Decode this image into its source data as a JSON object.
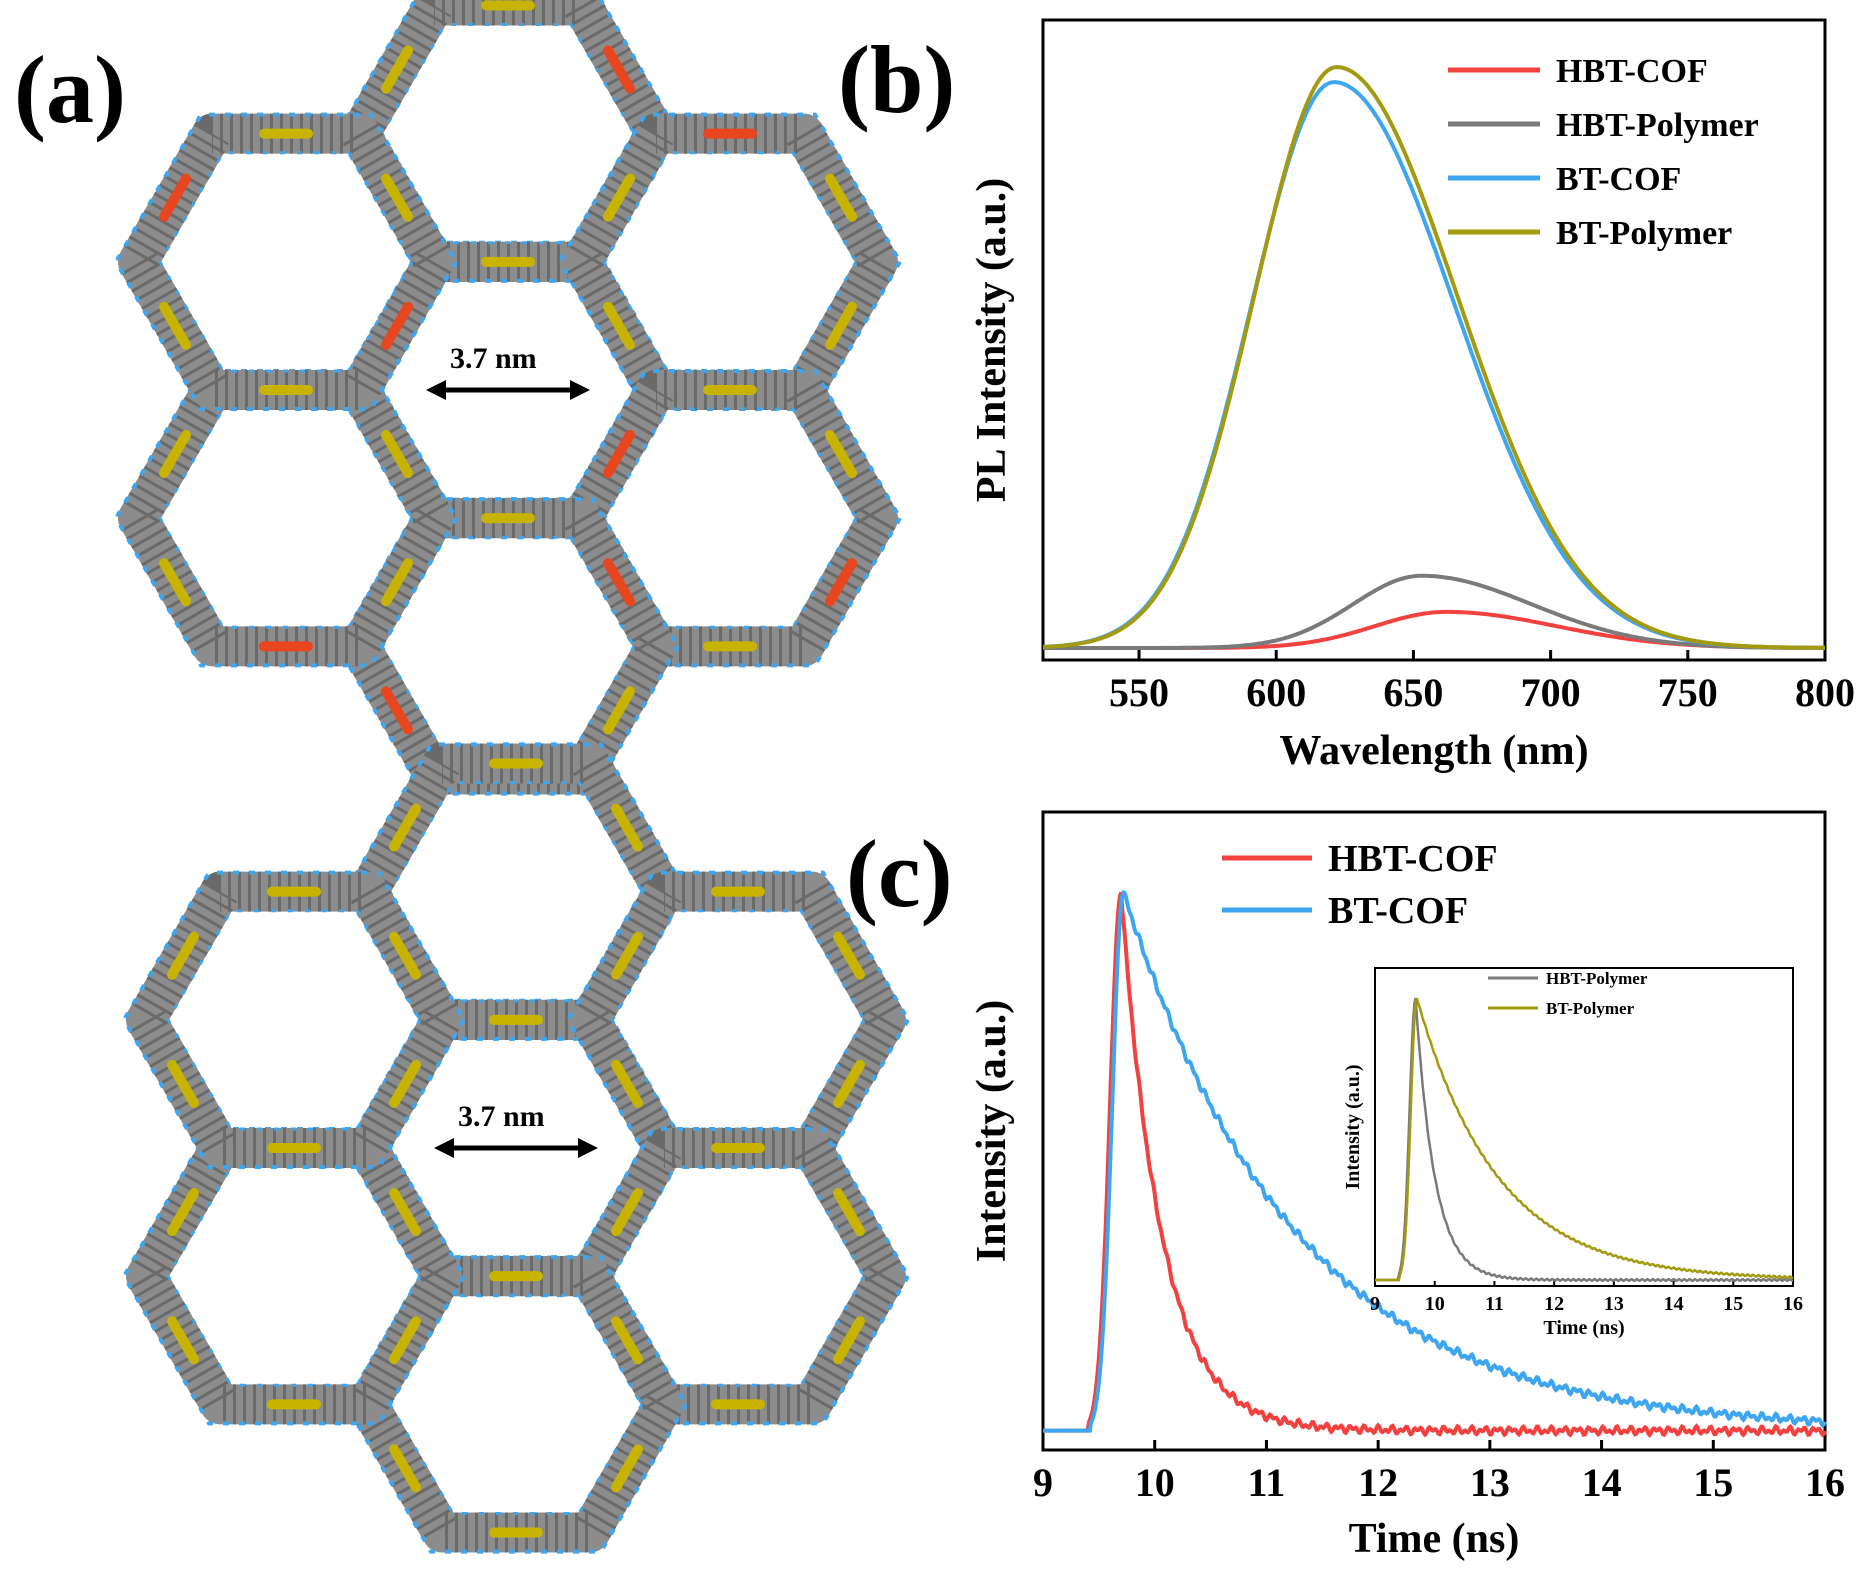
{
  "panels": {
    "a": {
      "label": "(a)",
      "pore_label_top": "3.7 nm",
      "pore_label_bottom": "3.7 nm",
      "colors": {
        "framework": "#8c8c8c",
        "framework_dark": "#6a6a6a",
        "edge": "#3ea6f0",
        "accent_yellow": "#c8b400",
        "accent_red": "#e8461e"
      }
    },
    "b": {
      "label": "(b)"
    },
    "c": {
      "label": "(c)"
    }
  },
  "chart_data": [
    {
      "id": "b",
      "type": "line",
      "xlabel": "Wavelength (nm)",
      "ylabel": "PL Intensity (a.u.)",
      "xlim": [
        515,
        800
      ],
      "ylim": [
        0,
        1.0
      ],
      "xticks": [
        550,
        600,
        650,
        700,
        750,
        800
      ],
      "legend_position": "top-right",
      "series": [
        {
          "name": "HBT-COF",
          "color": "#f2413e",
          "peak_x": 662,
          "peak_y": 0.06,
          "sigma_left": 26,
          "sigma_right": 40,
          "base": 0.0
        },
        {
          "name": "HBT-Polymer",
          "color": "#7a7a7a",
          "peak_x": 653,
          "peak_y": 0.12,
          "sigma_left": 25,
          "sigma_right": 40,
          "base": 0.0
        },
        {
          "name": "BT-COF",
          "color": "#3ea6f0",
          "peak_x": 621,
          "peak_y": 0.94,
          "sigma_left": 30,
          "sigma_right": 44,
          "base": 0.0
        },
        {
          "name": "BT-Polymer",
          "color": "#a39a10",
          "peak_x": 622,
          "peak_y": 0.965,
          "sigma_left": 30,
          "sigma_right": 44,
          "base": 0.0
        }
      ]
    },
    {
      "id": "c",
      "type": "line",
      "xlabel": "Time (ns)",
      "ylabel": "Intensity (a.u.)",
      "xlim": [
        9,
        16
      ],
      "ylim": [
        0,
        1.0
      ],
      "xticks": [
        9,
        10,
        11,
        12,
        13,
        14,
        15,
        16
      ],
      "legend_position": "top-left",
      "series": [
        {
          "name": "HBT-COF",
          "color": "#f2413e",
          "t0": 9.7,
          "rise": 0.1,
          "peak_y": 1.0,
          "tau": 0.36,
          "floor": 0.01
        },
        {
          "name": "BT-COF",
          "color": "#3ea6f0",
          "t0": 9.72,
          "rise": 0.1,
          "peak_y": 1.0,
          "tau": 1.55,
          "floor": 0.01
        }
      ],
      "inset": {
        "type": "line",
        "xlabel": "Time (ns)",
        "ylabel": "Intensity (a.u.)",
        "xlim": [
          9,
          16
        ],
        "ylim": [
          0,
          1.0
        ],
        "xticks": [
          9,
          10,
          11,
          12,
          13,
          14,
          15,
          16
        ],
        "legend_position": "top-right",
        "series": [
          {
            "name": "HBT-Polymer",
            "color": "#7a7a7a",
            "t0": 9.68,
            "rise": 0.1,
            "peak_y": 1.0,
            "tau": 0.32,
            "floor": 0.0
          },
          {
            "name": "BT-Polymer",
            "color": "#a39a10",
            "t0": 9.7,
            "rise": 0.1,
            "peak_y": 1.0,
            "tau": 1.35,
            "floor": 0.0
          }
        ]
      }
    }
  ]
}
